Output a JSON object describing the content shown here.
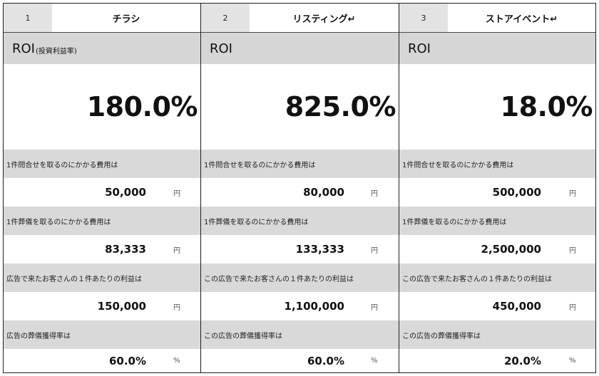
{
  "columns": [
    {
      "number": "1",
      "title": "チラシ",
      "roi_label": "ROI",
      "roi_sub": "(投資利益率)",
      "roi_value": "180.0%",
      "rows": [
        {
          "label": "1件問合せを取るのにかかる費用は",
          "value": "50,000",
          "unit": "円"
        },
        {
          "label": "1件葬儀を取るのにかかる費用は",
          "value": "83,333",
          "unit": "円"
        },
        {
          "label": "広告で来たお客さんの１件あたりの利益は",
          "value": "150,000",
          "unit": "円"
        },
        {
          "label": "広告の葬儀獲得率は",
          "value": "60.0%",
          "unit": "%"
        }
      ]
    },
    {
      "number": "2",
      "title": "リスティング↵",
      "roi_label": "ROI",
      "roi_sub": "",
      "roi_value": "825.0%",
      "rows": [
        {
          "label": "1件問合せを取るのにかかる費用は",
          "value": "80,000",
          "unit": "円"
        },
        {
          "label": "1件葬儀を取るのにかかる費用は",
          "value": "133,333",
          "unit": "円"
        },
        {
          "label": "この広告で来たお客さんの１件あたりの利益は",
          "value": "1,100,000",
          "unit": "円"
        },
        {
          "label": "この広告の葬儀獲得率は",
          "value": "60.0%",
          "unit": "%"
        }
      ]
    },
    {
      "number": "3",
      "title": "ストアイベント↵",
      "roi_label": "ROI",
      "roi_sub": "",
      "roi_value": "18.0%",
      "rows": [
        {
          "label": "1件問合せを取るのにかかる費用は",
          "value": "500,000",
          "unit": "円"
        },
        {
          "label": "1件葬儀を取るのにかかる費用は",
          "value": "2,500,000",
          "unit": "円"
        },
        {
          "label": "この広告で来たお客さんの１件あたりの利益は",
          "value": "450,000",
          "unit": "円"
        },
        {
          "label": "この広告の葬儀獲得率は",
          "value": "20.0%",
          "unit": "%"
        }
      ]
    }
  ]
}
